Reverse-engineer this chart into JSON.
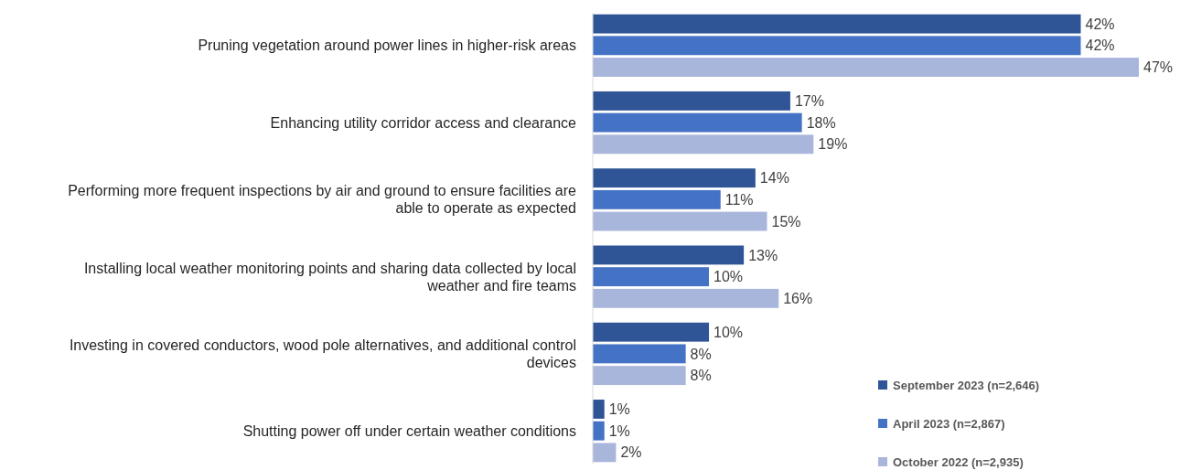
{
  "chart_data": {
    "type": "bar",
    "orientation": "horizontal",
    "categories": [
      "Pruning vegetation around power lines in higher-risk areas",
      "Enhancing utility corridor access and clearance",
      "Performing more frequent inspections by air and ground to ensure facilities are able to operate as expected",
      "Installing local weather monitoring points and sharing data collected by local weather and fire teams",
      "Investing in covered conductors, wood pole alternatives, and additional control devices",
      "Shutting power off under certain weather conditions"
    ],
    "series": [
      {
        "name": "September 2023 (n=2,646)",
        "color": "#2f5597",
        "values": [
          42,
          17,
          14,
          13,
          10,
          1
        ],
        "value_labels": [
          "42%",
          "17%",
          "14%",
          "13%",
          "10%",
          "1%"
        ]
      },
      {
        "name": "April 2023 (n=2,867)",
        "color": "#4472c4",
        "values": [
          42,
          18,
          11,
          10,
          8,
          1
        ],
        "value_labels": [
          "42%",
          "18%",
          "11%",
          "10%",
          "8%",
          "1%"
        ]
      },
      {
        "name": "October 2022 (n=2,935)",
        "color": "#a9b6db",
        "values": [
          47,
          19,
          15,
          16,
          8,
          2
        ],
        "value_labels": [
          "47%",
          "19%",
          "15%",
          "16%",
          "8%",
          "2%"
        ]
      }
    ],
    "legend": "bottom right"
  }
}
